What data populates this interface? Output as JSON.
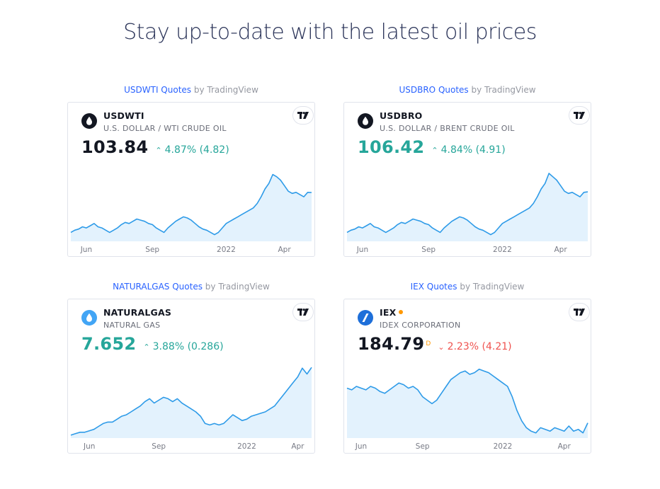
{
  "page": {
    "title": "Stay up-to-date with the latest oil prices"
  },
  "caption_suffix": " by TradingView",
  "widgets": [
    {
      "caption_link": "USDWTI Quotes",
      "symbol": "USDWTI",
      "description": "U.S. DOLLAR / WTI CRUDE OIL",
      "price": "103.84",
      "change": "4.87% (4.82)",
      "direction": "up",
      "price_tone": "neutral",
      "logo_icon": "oil-drop-icon",
      "logo_color": "#131722"
    },
    {
      "caption_link": "USDBRO Quotes",
      "symbol": "USDBRO",
      "description": "U.S. DOLLAR / BRENT CRUDE OIL",
      "price": "106.42",
      "change": "4.84% (4.91)",
      "direction": "up",
      "price_tone": "up",
      "logo_icon": "oil-drop-icon",
      "logo_color": "#131722"
    },
    {
      "caption_link": "NATURALGAS Quotes",
      "symbol": "NATURALGAS",
      "description": "NATURAL GAS",
      "price": "7.652",
      "change": "3.88% (0.286)",
      "direction": "up",
      "price_tone": "up",
      "logo_icon": "gas-flame-icon",
      "logo_color": "#42a5f5"
    },
    {
      "caption_link": "IEX Quotes",
      "symbol": "IEX",
      "description": "IDEX CORPORATION",
      "price": "184.79",
      "price_sup": "D",
      "change": "2.23% (4.21)",
      "direction": "down",
      "price_tone": "neutral",
      "logo_icon": "idex-logo-icon",
      "logo_color": "#1e6fd9"
    }
  ],
  "colors": {
    "line": "#2e9be8",
    "area": "#e3f2fd",
    "up": "#26a69a",
    "down": "#ef5350",
    "link": "#2962ff"
  },
  "chart_data": [
    {
      "type": "area",
      "title": "",
      "series": [
        {
          "values": [
            68,
            70,
            71,
            73,
            72,
            74,
            76,
            73,
            72,
            70,
            68,
            70,
            72,
            75,
            77,
            76,
            78,
            80,
            79,
            78,
            76,
            75,
            72,
            70,
            68,
            72,
            75,
            78,
            80,
            82,
            81,
            79,
            76,
            73,
            71,
            70,
            68,
            66,
            68,
            72,
            76,
            78,
            80,
            82,
            84,
            86,
            88,
            90,
            94,
            100,
            107,
            112,
            120,
            118,
            115,
            110,
            105,
            103,
            104,
            102,
            100,
            104,
            103.84
          ]
        }
      ],
      "x_ticks": [
        "Jun",
        "Sep",
        "2022",
        "Apr"
      ],
      "x_tick_index": [
        4,
        21,
        40,
        55
      ],
      "ylim": [
        60,
        128
      ],
      "grid": false
    },
    {
      "type": "area",
      "title": "",
      "series": [
        {
          "values": [
            70,
            72,
            73,
            75,
            74,
            76,
            78,
            75,
            74,
            72,
            70,
            72,
            74,
            77,
            79,
            78,
            80,
            82,
            81,
            80,
            78,
            77,
            74,
            72,
            70,
            74,
            77,
            80,
            82,
            84,
            83,
            81,
            78,
            75,
            73,
            72,
            70,
            68,
            70,
            74,
            78,
            80,
            82,
            84,
            86,
            88,
            90,
            92,
            96,
            102,
            109,
            114,
            123,
            120,
            117,
            112,
            107,
            105,
            106,
            104,
            102,
            106,
            106.42
          ]
        }
      ],
      "x_ticks": [
        "Jun",
        "Sep",
        "2022",
        "Apr"
      ],
      "x_tick_index": [
        4,
        21,
        40,
        55
      ],
      "ylim": [
        62,
        130
      ],
      "grid": false
    },
    {
      "type": "area",
      "title": "",
      "series": [
        {
          "values": [
            3.0,
            3.1,
            3.2,
            3.2,
            3.3,
            3.4,
            3.6,
            3.8,
            3.9,
            3.9,
            4.1,
            4.3,
            4.4,
            4.6,
            4.8,
            5.0,
            5.3,
            5.5,
            5.2,
            5.4,
            5.6,
            5.5,
            5.3,
            5.5,
            5.2,
            5.0,
            4.8,
            4.6,
            4.3,
            3.8,
            3.7,
            3.8,
            3.7,
            3.8,
            4.1,
            4.4,
            4.2,
            4.0,
            4.1,
            4.3,
            4.4,
            4.5,
            4.6,
            4.8,
            5.0,
            5.4,
            5.8,
            6.2,
            6.6,
            7.0,
            7.6,
            7.2,
            7.652
          ]
        }
      ],
      "x_ticks": [
        "Jun",
        "Sep",
        "2022",
        "Apr"
      ],
      "x_tick_index": [
        4,
        19,
        38,
        49
      ],
      "ylim": [
        2.8,
        8.0
      ],
      "grid": false
    },
    {
      "type": "area",
      "title": "",
      "series": [
        {
          "values": [
            205,
            204,
            206,
            205,
            204,
            206,
            205,
            203,
            202,
            204,
            206,
            208,
            207,
            205,
            206,
            204,
            200,
            198,
            196,
            198,
            202,
            206,
            210,
            212,
            214,
            215,
            213,
            214,
            216,
            215,
            214,
            212,
            210,
            208,
            206,
            200,
            192,
            186,
            182,
            180,
            179,
            182,
            181,
            180,
            182,
            181,
            180,
            183,
            180,
            181,
            179,
            184.79
          ]
        }
      ],
      "x_ticks": [
        "Jun",
        "Sep",
        "2022",
        "Apr"
      ],
      "x_tick_index": [
        3,
        16,
        33,
        46
      ],
      "ylim": [
        176,
        220
      ],
      "grid": false
    }
  ]
}
